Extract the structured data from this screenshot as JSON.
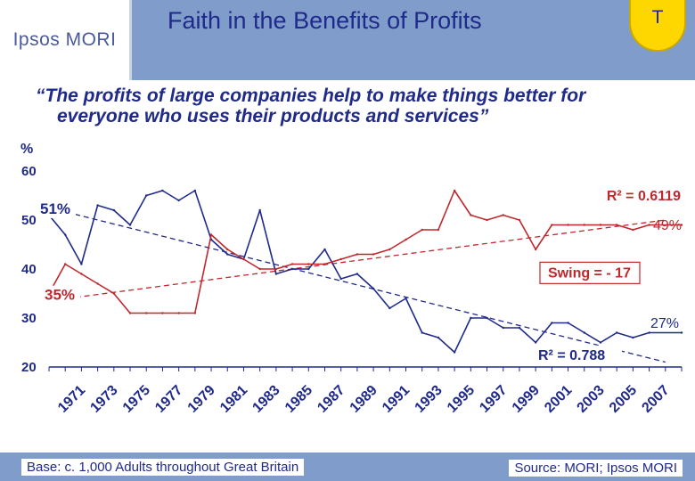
{
  "header": {
    "logo": "Ipsos MORI",
    "title": "Faith in the Benefits of Profits",
    "badge": "T"
  },
  "subtitle": {
    "line1": "“The profits of large companies help to make things better for",
    "line2": "everyone who uses their products and services”"
  },
  "chart_data": {
    "type": "line",
    "ylabel": "%",
    "ylim": [
      20,
      60
    ],
    "yticks": [
      20,
      30,
      40,
      50,
      60
    ],
    "xlim": [
      1970,
      2009
    ],
    "xticks": [
      "1971",
      "1973",
      "1975",
      "1977",
      "1979",
      "1981",
      "1983",
      "1985",
      "1987",
      "1989",
      "1991",
      "1993",
      "1995",
      "1997",
      "1999",
      "2001",
      "2003",
      "2005",
      "2007"
    ],
    "grid": false,
    "legend": "none",
    "series": [
      {
        "color": "#1f2a8a",
        "x": [
          1970,
          1971,
          1972,
          1973,
          1974,
          1975,
          1976,
          1977,
          1978,
          1979,
          1980,
          1981,
          1982,
          1983,
          1984,
          1985,
          1986,
          1987,
          1988,
          1989,
          1990,
          1991,
          1992,
          1993,
          1994,
          1995,
          1996,
          1997,
          1998,
          1999,
          2000,
          2001,
          2002,
          2003,
          2004,
          2005,
          2006,
          2007,
          2009
        ],
        "y": [
          51,
          47,
          41,
          53,
          52,
          49,
          55,
          56,
          54,
          56,
          46,
          43,
          42,
          52,
          39,
          40,
          40,
          44,
          38,
          39,
          36,
          32,
          34,
          27,
          26,
          23,
          30,
          30,
          28,
          28,
          25,
          29,
          29,
          27,
          25,
          27,
          26,
          27,
          27
        ]
      },
      {
        "color": "#c0282d",
        "x": [
          1970,
          1971,
          1972,
          1973,
          1974,
          1975,
          1976,
          1977,
          1978,
          1979,
          1980,
          1981,
          1982,
          1983,
          1984,
          1985,
          1986,
          1987,
          1988,
          1989,
          1990,
          1991,
          1992,
          1993,
          1994,
          1995,
          1996,
          1997,
          1998,
          1999,
          2000,
          2001,
          2002,
          2003,
          2004,
          2005,
          2006,
          2007,
          2009
        ],
        "y": [
          35,
          41,
          39,
          37,
          35,
          31,
          31,
          31,
          31,
          31,
          47,
          44,
          42,
          40,
          40,
          41,
          41,
          41,
          42,
          43,
          43,
          44,
          46,
          48,
          48,
          56,
          51,
          50,
          51,
          50,
          44,
          49,
          49,
          49,
          49,
          49,
          48,
          49,
          49
        ]
      }
    ],
    "trendlines": [
      {
        "series": 0,
        "from": [
          1970,
          52.5
        ],
        "to": [
          2008,
          21
        ],
        "color": "#1f2a8a"
      },
      {
        "series": 1,
        "from": [
          1970,
          33.5
        ],
        "to": [
          2008,
          50
        ],
        "color": "#c0282d"
      }
    ],
    "annotations": [
      {
        "text": "51%",
        "color": "#1f2a8a"
      },
      {
        "text": "35%",
        "color": "#c0282d"
      },
      {
        "text": "49%",
        "color": "#c0282d"
      },
      {
        "text": "27%",
        "color": "#1f2a8a"
      },
      {
        "text": "R² = 0.6119",
        "color": "#c0282d"
      },
      {
        "text": "R² = 0.788",
        "color": "#1f2a8a"
      },
      {
        "text": "Swing = - 17",
        "color": "#c0282d"
      }
    ]
  },
  "footer": {
    "base": "Base:  c. 1,000 Adults throughout Great Britain",
    "source": "Source: MORI; Ipsos MORI"
  }
}
